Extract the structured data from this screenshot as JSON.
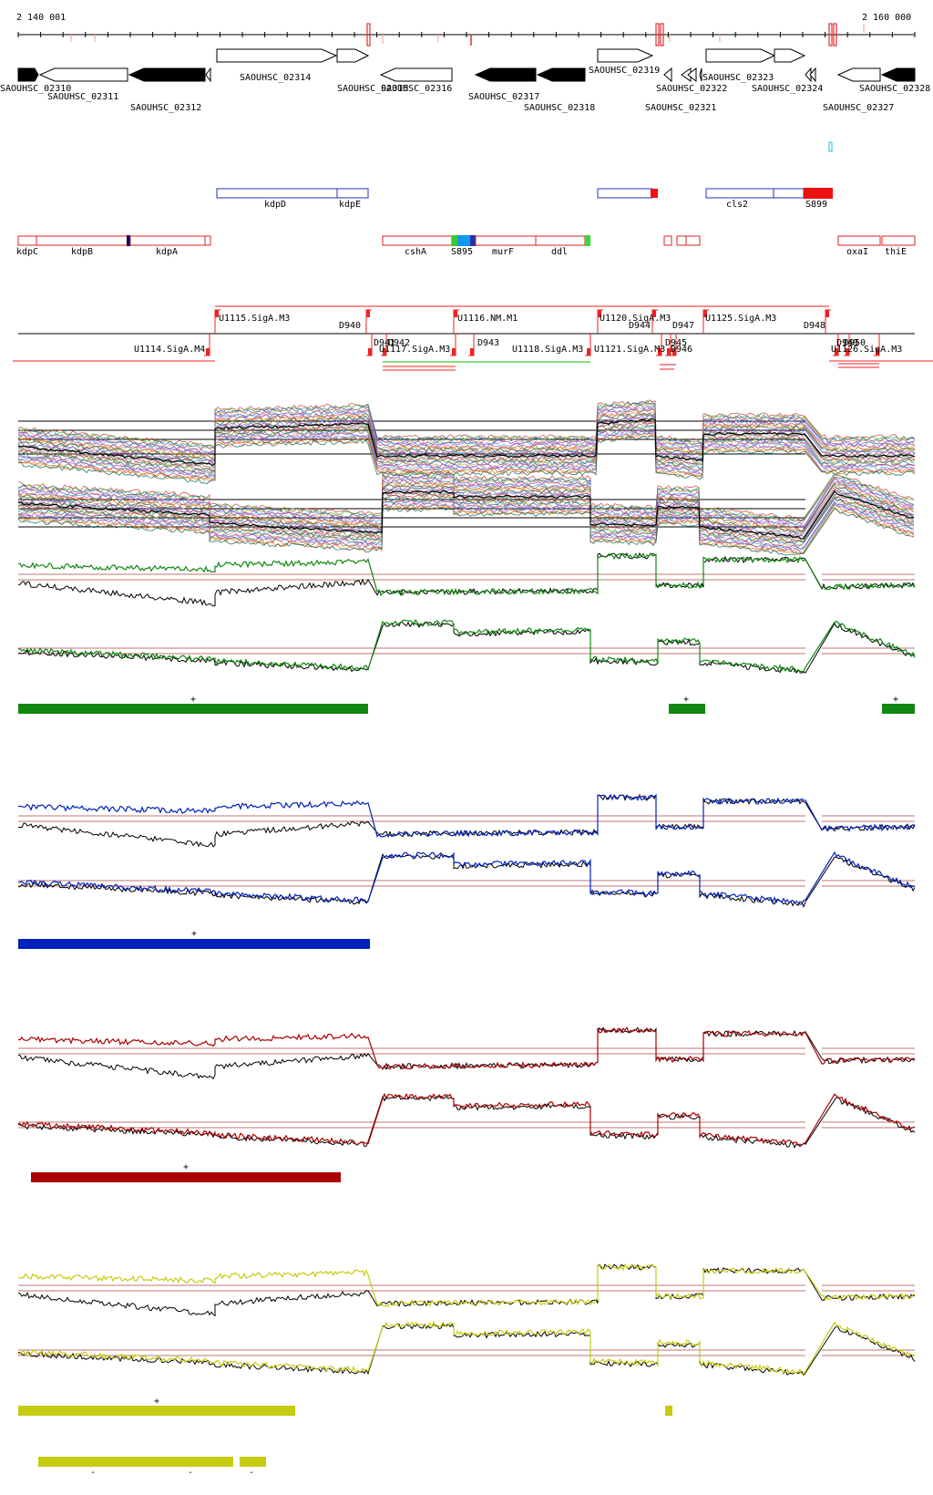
{
  "axis": {
    "start_label": "2 140 001",
    "end_label": "2 160 000"
  },
  "genes": [
    {
      "id": "SAOUHSC_02310",
      "strand": "+",
      "fill": "black"
    },
    {
      "id": "SAOUHSC_02311",
      "strand": "-",
      "fill": "white"
    },
    {
      "id": "SAOUHSC_02312",
      "strand": "-",
      "fill": "black"
    },
    {
      "id": "SAOUHSC_02314",
      "strand": "+",
      "fill": "white"
    },
    {
      "id": "SAOUHSC_02315",
      "strand": "+",
      "fill": "white"
    },
    {
      "id": "SAOUHSC_02316",
      "strand": "-",
      "fill": "white"
    },
    {
      "id": "SAOUHSC_02317",
      "strand": "-",
      "fill": "black"
    },
    {
      "id": "SAOUHSC_02318",
      "strand": "-",
      "fill": "black"
    },
    {
      "id": "SAOUHSC_02319",
      "strand": "+",
      "fill": "white"
    },
    {
      "id": "SAOUHSC_02321",
      "strand": "-",
      "fill": "white"
    },
    {
      "id": "SAOUHSC_02322",
      "strand": "-",
      "fill": "white"
    },
    {
      "id": "SAOUHSC_02323",
      "strand": "+",
      "fill": "white"
    },
    {
      "id": "SAOUHSC_02324",
      "strand": "+",
      "fill": "white"
    },
    {
      "id": "SAOUHSC_02327",
      "strand": "-",
      "fill": "white"
    },
    {
      "id": "SAOUHSC_02328",
      "strand": "-",
      "fill": "black"
    }
  ],
  "forward_operon_labels": [
    "kdpD",
    "kdpE",
    "cls2",
    "S899"
  ],
  "reverse_operon_labels": [
    "kdpC",
    "kdpB",
    "kdpA",
    "cshA",
    "S895",
    "murF",
    "ddl",
    "oxaI",
    "thiE"
  ],
  "promoters_top": [
    "U1115.SigA.M3",
    "D940",
    "U1116.NM.M1",
    "U1120.SigA.M3",
    "D944",
    "D947",
    "U1125.SigA.M3",
    "D948"
  ],
  "promoters_bottom": [
    "U1114.SigA.M4",
    "D941",
    "D942",
    "U1117.SigA.M3",
    "D943",
    "U1118.SigA.M3",
    "U1121.SigA.M3",
    "D945",
    "D946",
    "D949",
    "D950",
    "U1126.SigA.M3"
  ],
  "condition_panels": [
    {
      "color": "#118811",
      "segment_marks": [
        "+",
        "+",
        "+"
      ]
    },
    {
      "color": "#0022bb",
      "segment_marks": [
        "+"
      ]
    },
    {
      "color": "#aa0000",
      "segment_marks": [
        "+"
      ]
    },
    {
      "color": "#c6cc11",
      "segment_marks": [
        "+"
      ],
      "reverse_marks": [
        "-",
        "-",
        "-"
      ]
    }
  ]
}
